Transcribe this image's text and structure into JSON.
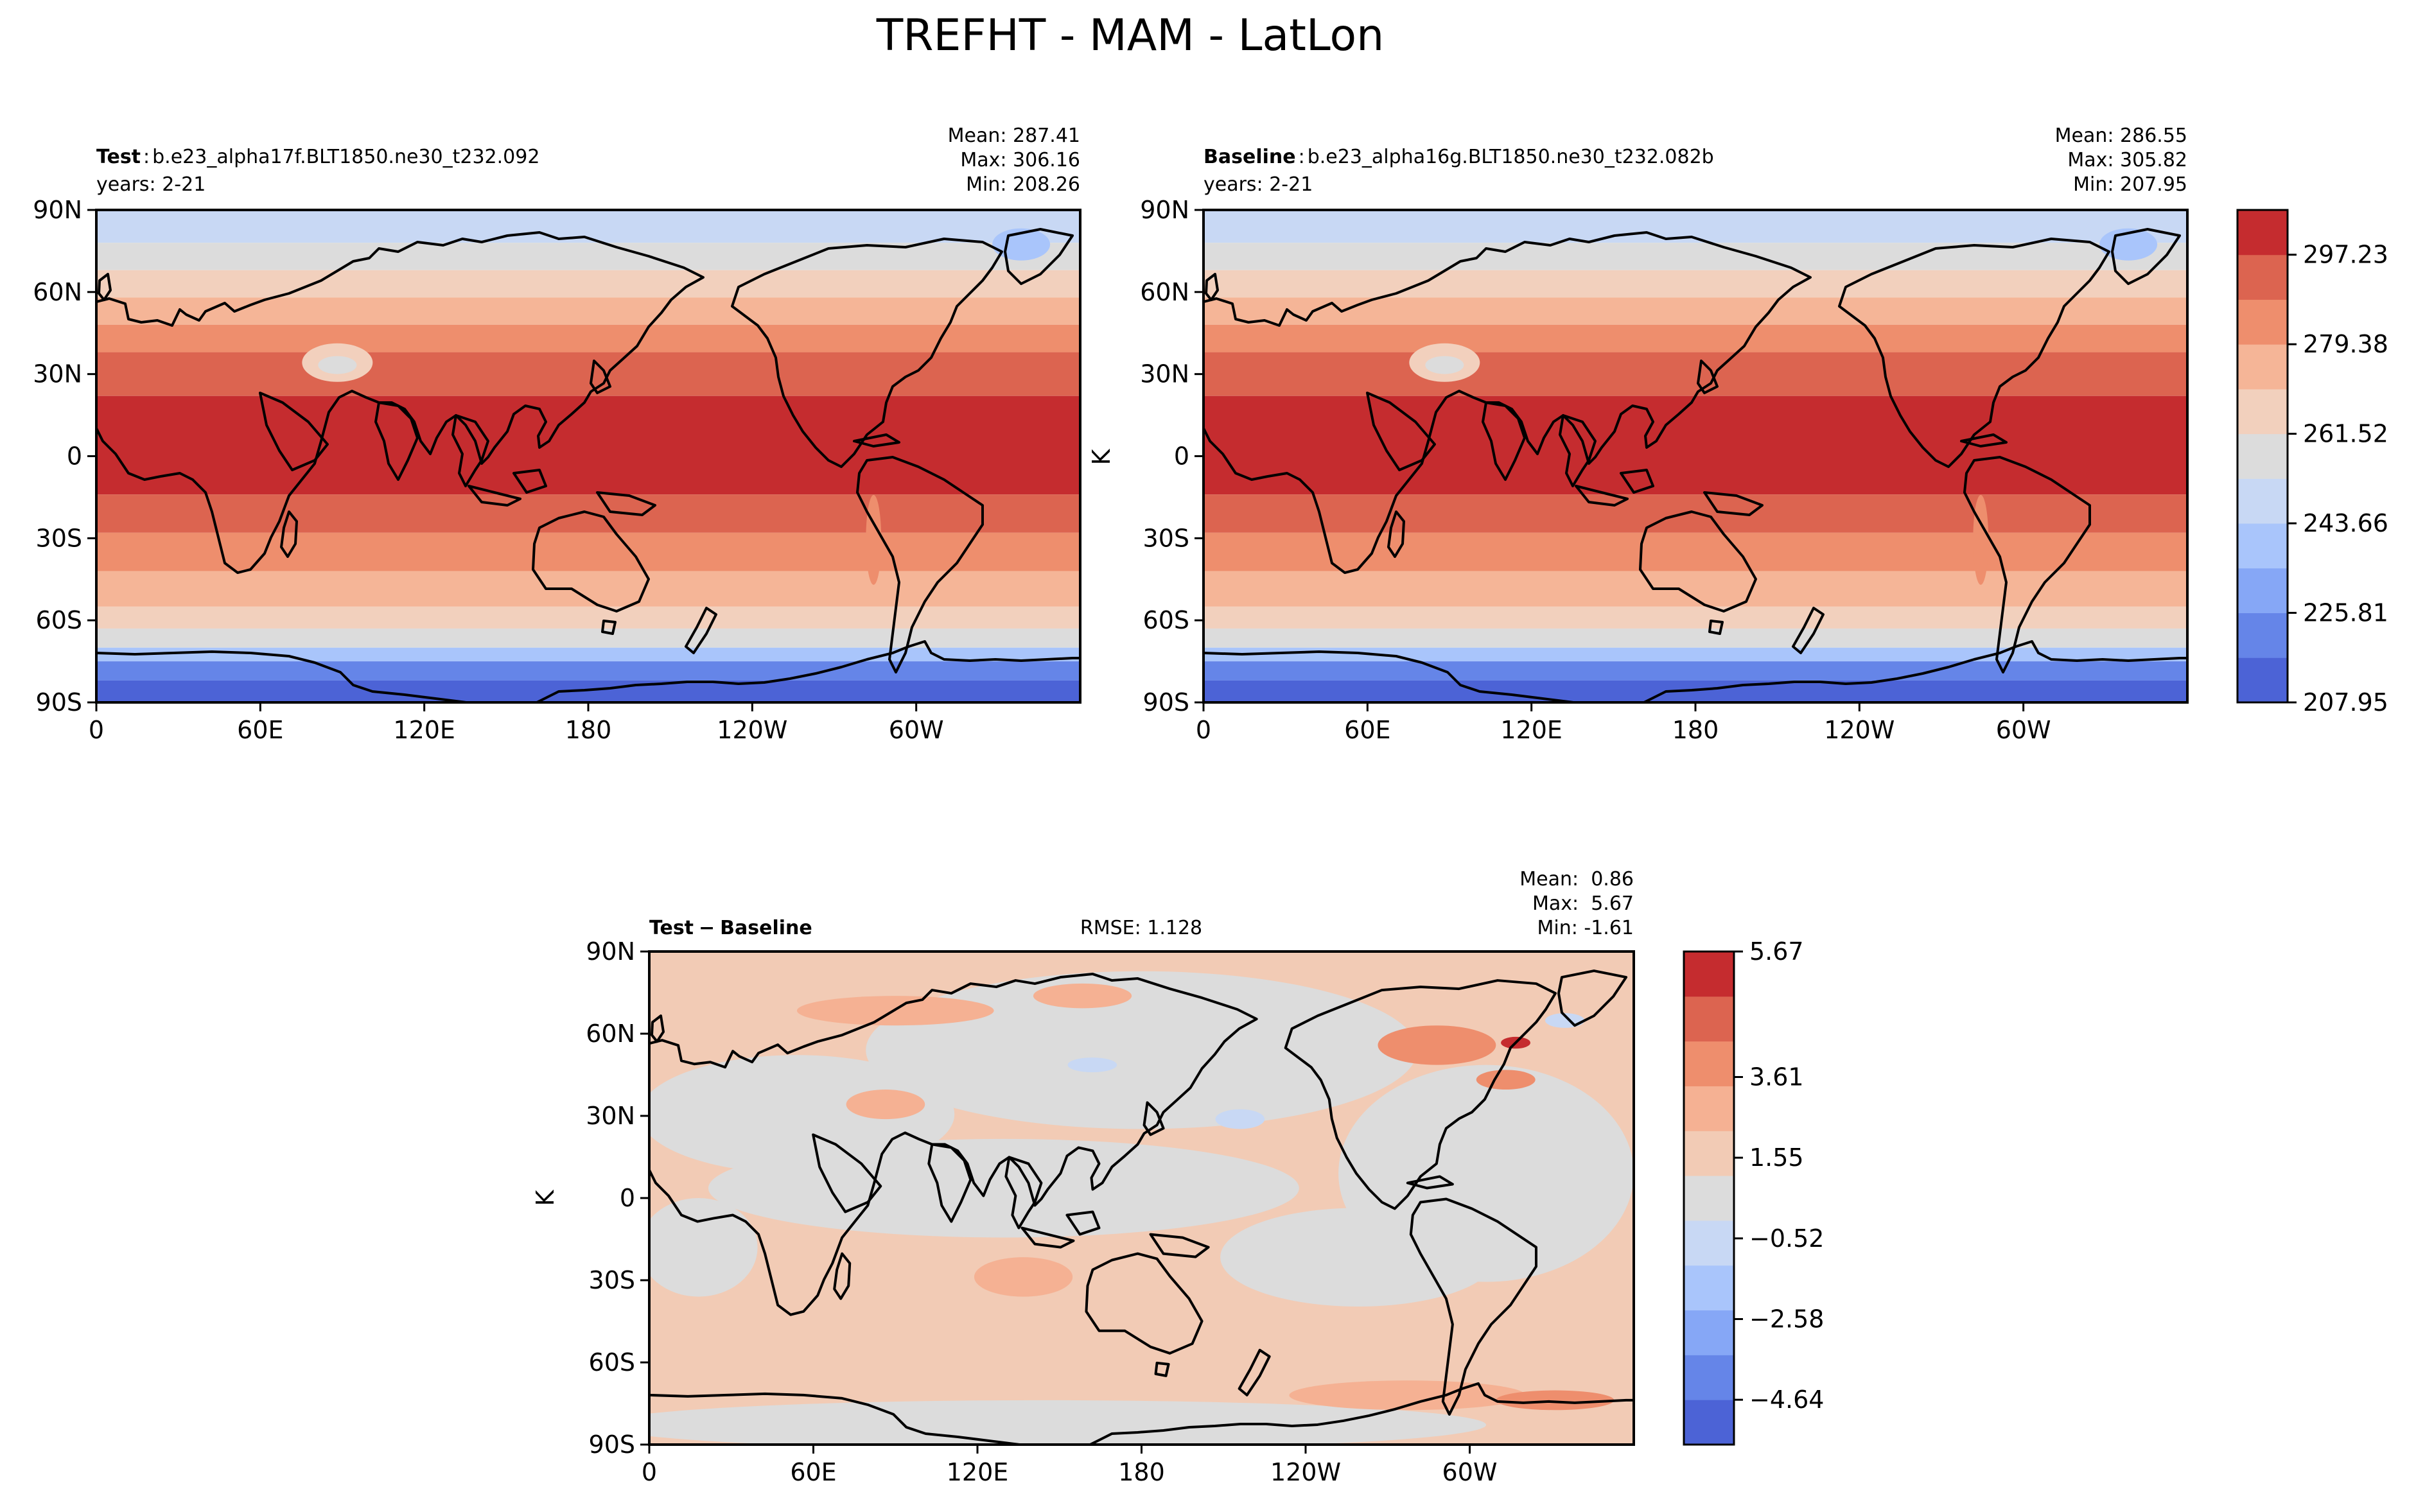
{
  "title": "TREFHT - MAM - LatLon",
  "colors": {
    "abs_levels": [
      "#4c63d6",
      "#6585e8",
      "#86a7f6",
      "#a9c5fb",
      "#c8d8f4",
      "#dcdcdc",
      "#f2d0bd",
      "#f5b597",
      "#ee8e6d",
      "#dc6450",
      "#c52c2f"
    ],
    "diff_levels": [
      "#4c63d6",
      "#6585e8",
      "#86a7f6",
      "#a9c5fb",
      "#c8d8f4",
      "#dcdcdc",
      "#f2cbb5",
      "#f5b193",
      "#ee8e6d",
      "#dc6450",
      "#c52c2f"
    ],
    "land_line": "#000000"
  },
  "xticks": [
    "0",
    "60E",
    "120E",
    "180",
    "120W",
    "60W"
  ],
  "yticks": [
    "90N",
    "60N",
    "30N",
    "0",
    "30S",
    "60S",
    "90S"
  ],
  "panels": {
    "test": {
      "label": "Test",
      "sep": ":",
      "case": "b.e23_alpha17f.BLT1850.ne30_t232.092",
      "years": "years: 2-21",
      "mean": "Mean: 287.41",
      "max": "Max: 306.16",
      "min": "Min: 208.26"
    },
    "baseline": {
      "label": "Baseline",
      "sep": ":",
      "case": "b.e23_alpha16g.BLT1850.ne30_t232.082b",
      "years": "years: 2-21",
      "ylabel": "K",
      "mean": "Mean: 286.55",
      "max": "Max: 305.82",
      "min": "Min: 207.95"
    },
    "diff": {
      "label_a": "Test",
      "label_sep": "−",
      "label_b": "Baseline",
      "rmse": "RMSE: 1.128",
      "ylabel": "K",
      "mean": "Mean:  0.86",
      "max": "Max:  5.67",
      "min": "Min: -1.61"
    }
  },
  "colorbars": {
    "abs": {
      "ticks": [
        "297.23",
        "279.38",
        "261.52",
        "243.66",
        "225.81",
        "207.95"
      ]
    },
    "diff": {
      "ticks": [
        "5.67",
        "3.61",
        "1.55",
        "−0.52",
        "−2.58",
        "−4.64"
      ]
    }
  },
  "chart_data": [
    {
      "type": "heatmap",
      "name": "Test",
      "variable": "TREFHT",
      "units": "K",
      "xlim": [
        0,
        360
      ],
      "ylim": [
        -90,
        90
      ],
      "contour_levels": [
        207.95,
        216.88,
        225.81,
        234.73,
        243.66,
        252.59,
        261.52,
        270.45,
        279.38,
        288.3,
        297.23,
        306.16
      ],
      "zonal_profile": {
        "lat": [
          85,
          70,
          55,
          40,
          25,
          10,
          0,
          -10,
          -25,
          -40,
          -55,
          -65,
          -75,
          -85
        ],
        "value": [
          255,
          262,
          272,
          282,
          292,
          300,
          300,
          299,
          292,
          284,
          276,
          266,
          240,
          228
        ]
      }
    },
    {
      "type": "heatmap",
      "name": "Baseline",
      "variable": "TREFHT",
      "units": "K",
      "xlim": [
        0,
        360
      ],
      "ylim": [
        -90,
        90
      ],
      "contour_levels": [
        207.95,
        216.88,
        225.81,
        234.73,
        243.66,
        252.59,
        261.52,
        270.45,
        279.38,
        288.3,
        297.23,
        306.16
      ],
      "zonal_profile": {
        "lat": [
          85,
          70,
          55,
          40,
          25,
          10,
          0,
          -10,
          -25,
          -40,
          -55,
          -65,
          -75,
          -85
        ],
        "value": [
          254,
          261,
          271,
          281,
          291,
          299,
          300,
          298,
          291,
          283,
          275,
          265,
          239,
          227
        ]
      }
    },
    {
      "type": "heatmap",
      "name": "Test − Baseline",
      "variable": "TREFHT",
      "units": "K",
      "xlim": [
        0,
        360
      ],
      "ylim": [
        -90,
        90
      ],
      "contour_levels": [
        -5.67,
        -4.64,
        -3.61,
        -2.58,
        -1.55,
        -0.52,
        0.52,
        1.55,
        2.58,
        3.61,
        4.64,
        5.67
      ]
    }
  ]
}
